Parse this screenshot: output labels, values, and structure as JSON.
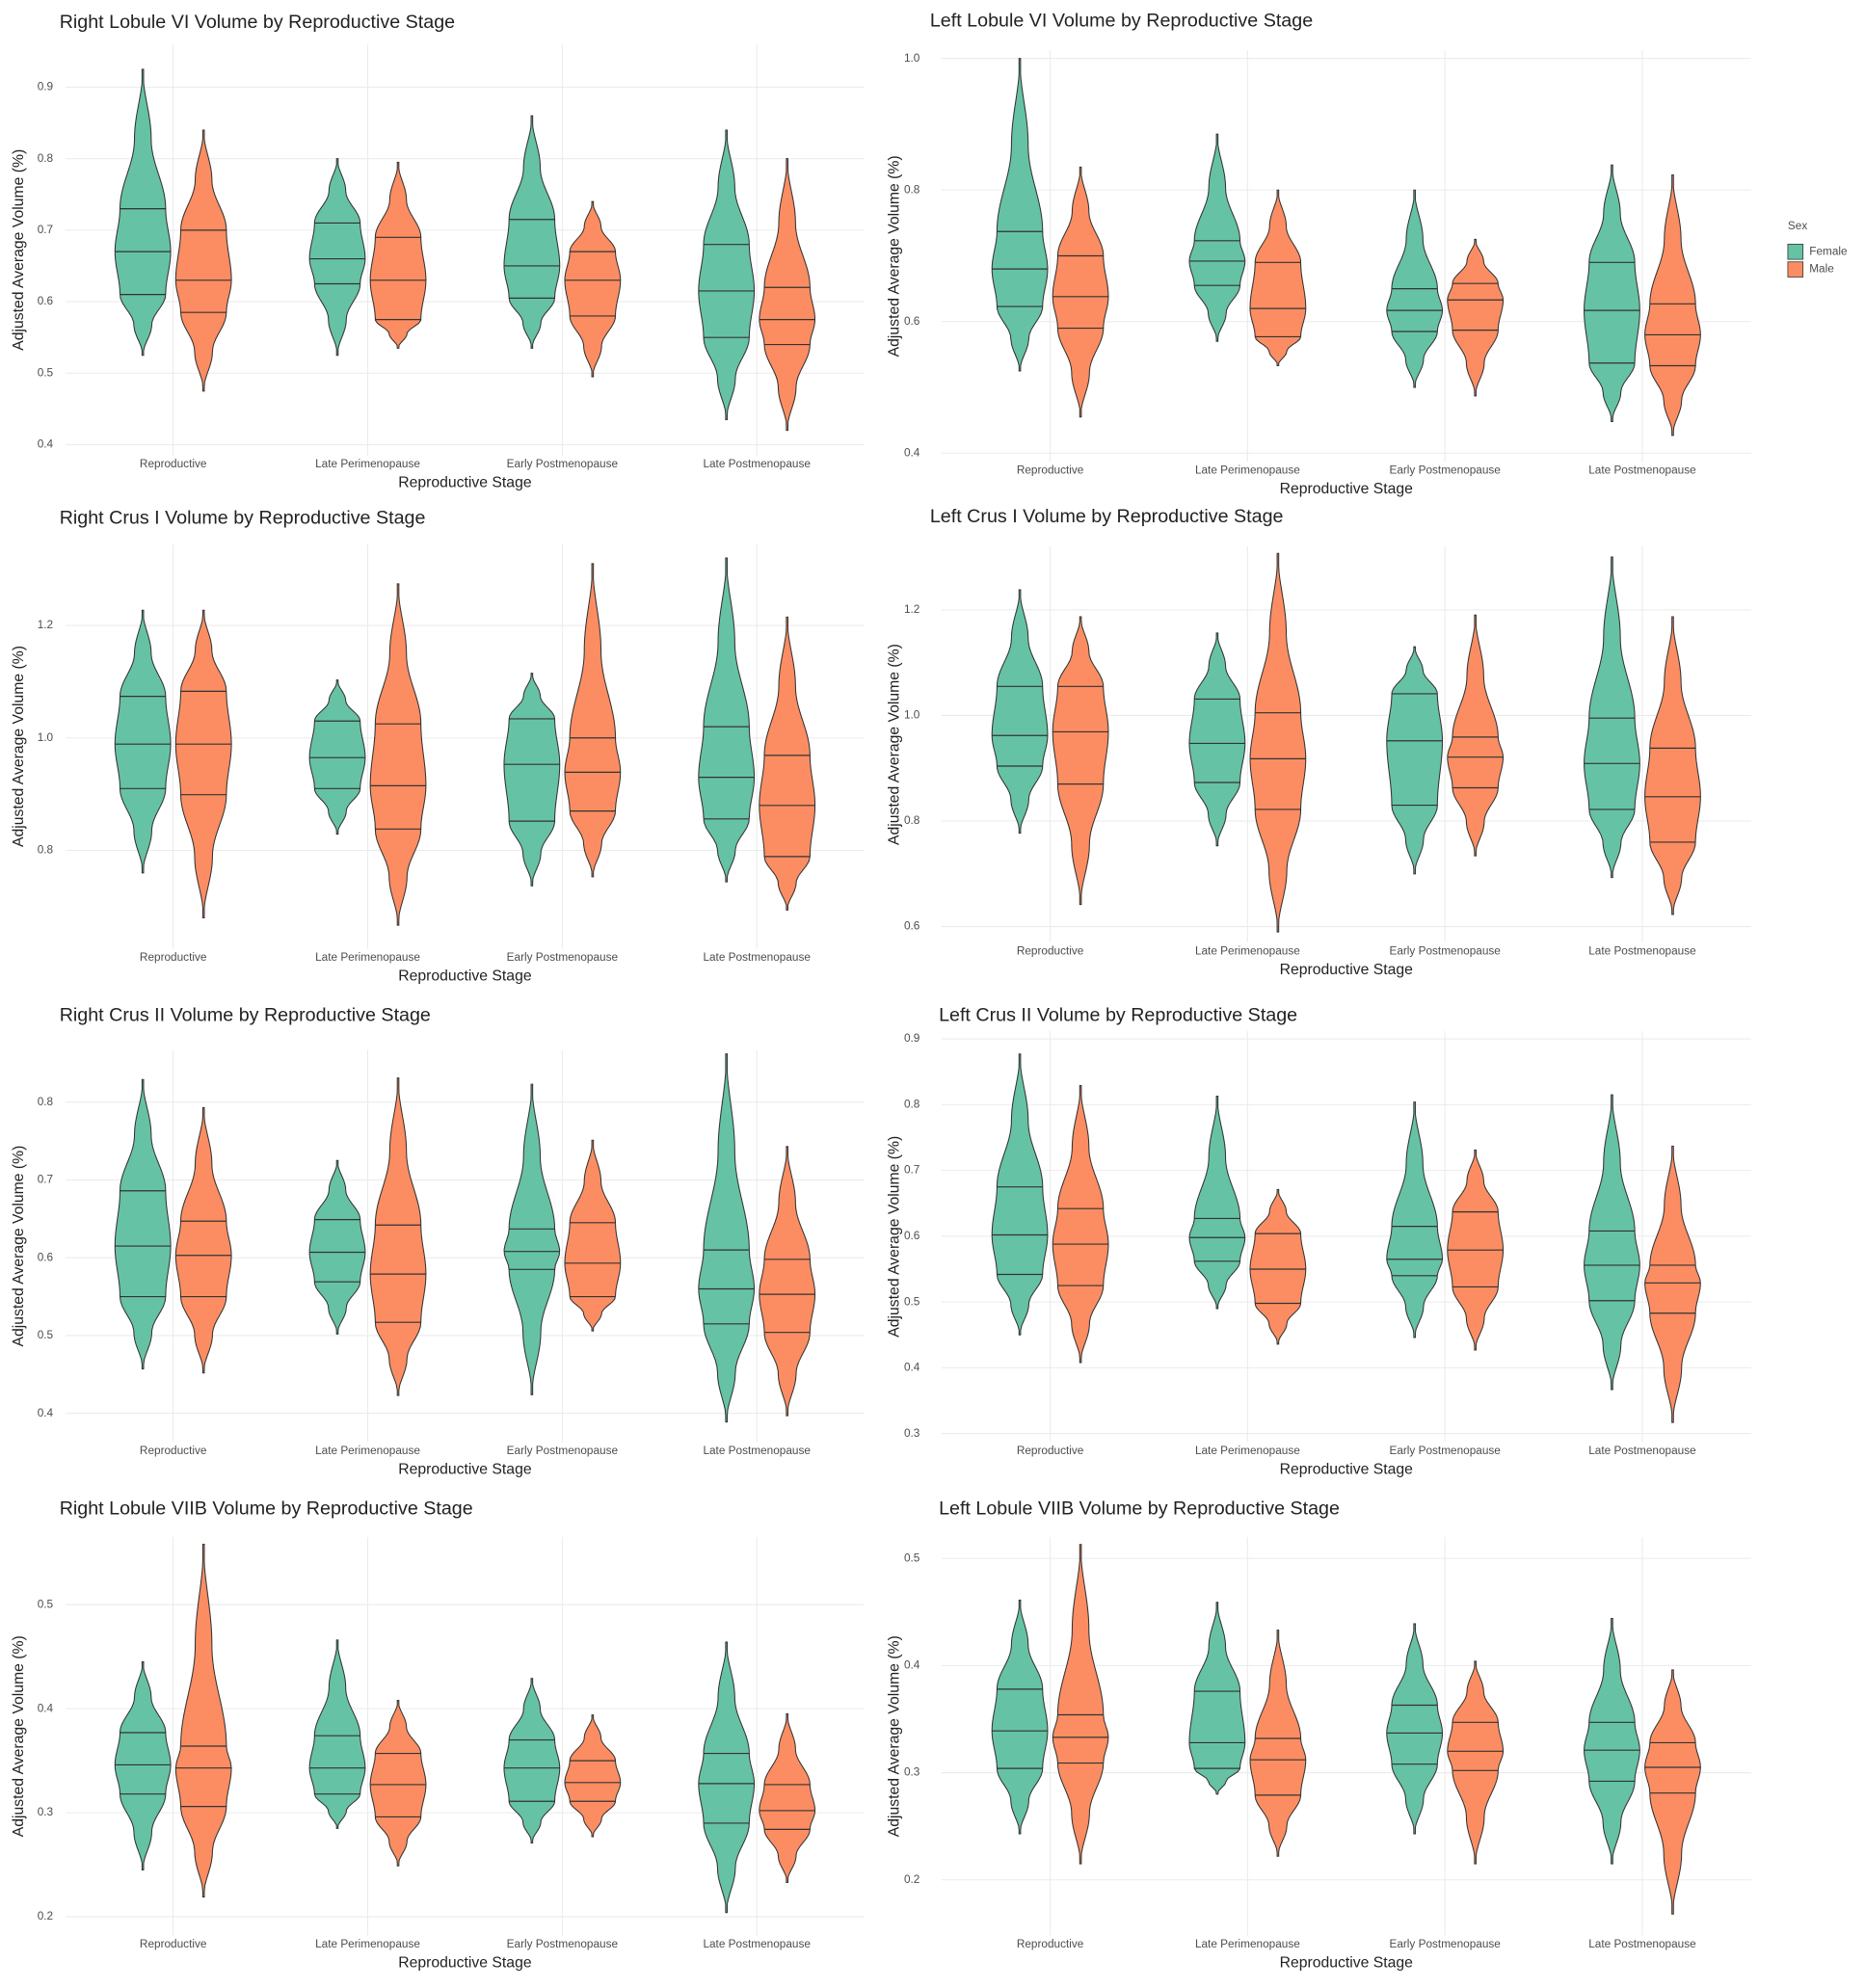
{
  "chart_data": [
    {
      "type": "violin",
      "title": "Right Lobule VI Volume by Reproductive Stage",
      "x_label": "Reproductive Stage",
      "y_label": "Adjusted Average Volume (%)",
      "categories": [
        "Reproductive",
        "Late Perimenopause",
        "Early Postmenopause",
        "Late Postmenopause"
      ],
      "ylim": [
        0.385,
        0.96
      ],
      "yticks": [
        0.4,
        0.5,
        0.6,
        0.7,
        0.8,
        0.9
      ],
      "grid": true,
      "series": [
        {
          "color": "#66c2a5",
          "values": [
            {
              "min": 0.525,
              "q1": 0.61,
              "median": 0.67,
              "q3": 0.73,
              "max": 0.925
            },
            {
              "min": 0.525,
              "q1": 0.625,
              "median": 0.66,
              "q3": 0.71,
              "max": 0.8
            },
            {
              "min": 0.535,
              "q1": 0.605,
              "median": 0.65,
              "q3": 0.715,
              "max": 0.86
            },
            {
              "min": 0.435,
              "q1": 0.55,
              "median": 0.615,
              "q3": 0.68,
              "max": 0.84
            }
          ]
        },
        {
          "color": "#fc8d62",
          "values": [
            {
              "min": 0.475,
              "q1": 0.585,
              "median": 0.63,
              "q3": 0.7,
              "max": 0.84
            },
            {
              "min": 0.535,
              "q1": 0.575,
              "median": 0.63,
              "q3": 0.69,
              "max": 0.795
            },
            {
              "min": 0.495,
              "q1": 0.58,
              "median": 0.63,
              "q3": 0.67,
              "max": 0.74
            },
            {
              "min": 0.42,
              "q1": 0.54,
              "median": 0.575,
              "q3": 0.62,
              "max": 0.8
            }
          ]
        }
      ]
    },
    {
      "type": "violin",
      "title": "Left Lobule VI Volume by Reproductive Stage",
      "x_label": "Reproductive Stage",
      "y_label": "Adjusted Average Volume (%)",
      "categories": [
        "Reproductive",
        "Late Perimenopause",
        "Early Postmenopause",
        "Late Postmenopause"
      ],
      "ylim": [
        0.387,
        1.012
      ],
      "yticks": [
        0.4,
        0.6,
        0.8,
        {
          "value": 1,
          "label": "1.0"
        }
      ],
      "grid": true,
      "legend": true,
      "legend_title": "Sex",
      "series": [
        {
          "name": "Female",
          "color": "#66c2a5",
          "values": [
            {
              "min": 0.525,
              "q1": 0.623,
              "median": 0.68,
              "q3": 0.737,
              "max": 1.0
            },
            {
              "min": 0.57,
              "q1": 0.655,
              "median": 0.692,
              "q3": 0.723,
              "max": 0.885
            },
            {
              "min": 0.5,
              "q1": 0.585,
              "median": 0.617,
              "q3": 0.65,
              "max": 0.8
            },
            {
              "min": 0.448,
              "q1": 0.537,
              "median": 0.617,
              "q3": 0.69,
              "max": 0.838
            }
          ]
        },
        {
          "name": "Male",
          "color": "#fc8d62",
          "values": [
            {
              "min": 0.455,
              "q1": 0.59,
              "median": 0.638,
              "q3": 0.7,
              "max": 0.835
            },
            {
              "min": 0.533,
              "q1": 0.577,
              "median": 0.62,
              "q3": 0.69,
              "max": 0.8
            },
            {
              "min": 0.487,
              "q1": 0.587,
              "median": 0.633,
              "q3": 0.658,
              "max": 0.725
            },
            {
              "min": 0.427,
              "q1": 0.533,
              "median": 0.58,
              "q3": 0.627,
              "max": 0.823
            }
          ]
        }
      ]
    },
    {
      "type": "violin",
      "title": "Right  Crus I Volume by Reproductive Stage",
      "x_label": "Reproductive Stage",
      "y_label": "Adjusted Average Volume (%)",
      "categories": [
        "Reproductive",
        "Late Perimenopause",
        "Early Postmenopause",
        "Late Postmenopause"
      ],
      "ylim": [
        0.625,
        1.345
      ],
      "yticks": [
        0.8,
        {
          "value": 1,
          "label": "1.0"
        },
        1.2
      ],
      "grid": true,
      "series": [
        {
          "color": "#66c2a5",
          "values": [
            {
              "min": 0.76,
              "q1": 0.91,
              "median": 0.989,
              "q3": 1.074,
              "max": 1.227
            },
            {
              "min": 0.829,
              "q1": 0.91,
              "median": 0.965,
              "q3": 1.03,
              "max": 1.103
            },
            {
              "min": 0.737,
              "q1": 0.852,
              "median": 0.953,
              "q3": 1.034,
              "max": 1.115
            },
            {
              "min": 0.744,
              "q1": 0.856,
              "median": 0.93,
              "q3": 1.02,
              "max": 1.32
            }
          ]
        },
        {
          "color": "#fc8d62",
          "values": [
            {
              "min": 0.68,
              "q1": 0.899,
              "median": 0.989,
              "q3": 1.083,
              "max": 1.227
            },
            {
              "min": 0.667,
              "q1": 0.838,
              "median": 0.915,
              "q3": 1.025,
              "max": 1.274
            },
            {
              "min": 0.753,
              "q1": 0.87,
              "median": 0.939,
              "q3": 1.0,
              "max": 1.31
            },
            {
              "min": 0.694,
              "q1": 0.789,
              "median": 0.88,
              "q3": 0.969,
              "max": 1.215
            }
          ]
        }
      ]
    },
    {
      "type": "violin",
      "title": "Left Crus I Volume by Reproductive Stage",
      "x_label": "Reproductive Stage",
      "y_label": "Adjusted Average Volume (%)",
      "categories": [
        "Reproductive",
        "Late Perimenopause",
        "Early Postmenopause",
        "Late Postmenopause"
      ],
      "ylim": [
        0.57,
        1.32
      ],
      "yticks": [
        0.6,
        0.8,
        {
          "value": 1,
          "label": "1.0"
        },
        1.2
      ],
      "grid": true,
      "series": [
        {
          "color": "#66c2a5",
          "values": [
            {
              "min": 0.777,
              "q1": 0.904,
              "median": 0.962,
              "q3": 1.055,
              "max": 1.238
            },
            {
              "min": 0.753,
              "q1": 0.873,
              "median": 0.947,
              "q3": 1.031,
              "max": 1.156
            },
            {
              "min": 0.7,
              "q1": 0.83,
              "median": 0.952,
              "q3": 1.041,
              "max": 1.13
            },
            {
              "min": 0.693,
              "q1": 0.822,
              "median": 0.909,
              "q3": 0.995,
              "max": 1.3
            }
          ]
        },
        {
          "color": "#fc8d62",
          "values": [
            {
              "min": 0.642,
              "q1": 0.87,
              "median": 0.969,
              "q3": 1.055,
              "max": 1.187
            },
            {
              "min": 0.59,
              "q1": 0.822,
              "median": 0.918,
              "q3": 1.005,
              "max": 1.307
            },
            {
              "min": 0.734,
              "q1": 0.863,
              "median": 0.921,
              "q3": 0.959,
              "max": 1.19
            },
            {
              "min": 0.623,
              "q1": 0.76,
              "median": 0.846,
              "q3": 0.938,
              "max": 1.187
            }
          ]
        }
      ]
    },
    {
      "type": "violin",
      "title": "Right  Crus II Volume by Reproductive Stage",
      "x_label": "Reproductive Stage",
      "y_label": "Adjusted Average Volume (%)",
      "categories": [
        "Reproductive",
        "Late Perimenopause",
        "Early Postmenopause",
        "Late Postmenopause"
      ],
      "ylim": [
        0.363,
        0.867
      ],
      "yticks": [
        0.4,
        0.5,
        0.6,
        0.7,
        0.8
      ],
      "grid": true,
      "series": [
        {
          "color": "#66c2a5",
          "values": [
            {
              "min": 0.457,
              "q1": 0.55,
              "median": 0.615,
              "q3": 0.686,
              "max": 0.829
            },
            {
              "min": 0.502,
              "q1": 0.569,
              "median": 0.607,
              "q3": 0.649,
              "max": 0.725
            },
            {
              "min": 0.424,
              "q1": 0.585,
              "median": 0.608,
              "q3": 0.637,
              "max": 0.823
            },
            {
              "min": 0.389,
              "q1": 0.515,
              "median": 0.56,
              "q3": 0.61,
              "max": 0.862
            }
          ]
        },
        {
          "color": "#fc8d62",
          "values": [
            {
              "min": 0.452,
              "q1": 0.55,
              "median": 0.603,
              "q3": 0.647,
              "max": 0.793
            },
            {
              "min": 0.423,
              "q1": 0.517,
              "median": 0.579,
              "q3": 0.642,
              "max": 0.831
            },
            {
              "min": 0.506,
              "q1": 0.55,
              "median": 0.593,
              "q3": 0.645,
              "max": 0.751
            },
            {
              "min": 0.397,
              "q1": 0.504,
              "median": 0.553,
              "q3": 0.598,
              "max": 0.743
            }
          ]
        }
      ]
    },
    {
      "type": "violin",
      "title": "Left Crus II Volume by Reproductive Stage",
      "x_label": "Reproductive Stage",
      "y_label": "Adjusted Average Volume (%)",
      "categories": [
        "Reproductive",
        "Late Perimenopause",
        "Early Postmenopause",
        "Late Postmenopause"
      ],
      "ylim": [
        0.287,
        0.912
      ],
      "yticks": [
        0.3,
        0.4,
        0.5,
        0.6,
        0.7,
        0.8,
        0.9
      ],
      "grid": true,
      "series": [
        {
          "color": "#66c2a5",
          "values": [
            {
              "min": 0.45,
              "q1": 0.542,
              "median": 0.602,
              "q3": 0.675,
              "max": 0.877
            },
            {
              "min": 0.49,
              "q1": 0.562,
              "median": 0.598,
              "q3": 0.627,
              "max": 0.813
            },
            {
              "min": 0.446,
              "q1": 0.54,
              "median": 0.565,
              "q3": 0.615,
              "max": 0.804
            },
            {
              "min": 0.367,
              "q1": 0.502,
              "median": 0.556,
              "q3": 0.608,
              "max": 0.815
            }
          ]
        },
        {
          "color": "#fc8d62",
          "values": [
            {
              "min": 0.408,
              "q1": 0.525,
              "median": 0.588,
              "q3": 0.642,
              "max": 0.829
            },
            {
              "min": 0.436,
              "q1": 0.498,
              "median": 0.55,
              "q3": 0.604,
              "max": 0.671
            },
            {
              "min": 0.427,
              "q1": 0.523,
              "median": 0.579,
              "q3": 0.637,
              "max": 0.731
            },
            {
              "min": 0.317,
              "q1": 0.483,
              "median": 0.529,
              "q3": 0.556,
              "max": 0.737
            }
          ]
        }
      ]
    },
    {
      "type": "violin",
      "title": "Right Lobule VIIB Volume by Reproductive Stage",
      "x_label": "Reproductive Stage",
      "y_label": "Adjusted Average Volume (%)",
      "categories": [
        "Reproductive",
        "Late Perimenopause",
        "Early Postmenopause",
        "Late Postmenopause"
      ],
      "ylim": [
        0.182,
        0.565
      ],
      "yticks": [
        0.2,
        0.3,
        0.4,
        0.5
      ],
      "grid": true,
      "series": [
        {
          "color": "#66c2a5",
          "values": [
            {
              "min": 0.245,
              "q1": 0.318,
              "median": 0.346,
              "q3": 0.377,
              "max": 0.445
            },
            {
              "min": 0.285,
              "q1": 0.318,
              "median": 0.343,
              "q3": 0.374,
              "max": 0.466
            },
            {
              "min": 0.271,
              "q1": 0.311,
              "median": 0.343,
              "q3": 0.37,
              "max": 0.429
            },
            {
              "min": 0.204,
              "q1": 0.29,
              "median": 0.328,
              "q3": 0.357,
              "max": 0.464
            }
          ]
        },
        {
          "color": "#fc8d62",
          "values": [
            {
              "min": 0.219,
              "q1": 0.306,
              "median": 0.343,
              "q3": 0.364,
              "max": 0.558
            },
            {
              "min": 0.249,
              "q1": 0.296,
              "median": 0.327,
              "q3": 0.357,
              "max": 0.408
            },
            {
              "min": 0.277,
              "q1": 0.311,
              "median": 0.329,
              "q3": 0.35,
              "max": 0.394
            },
            {
              "min": 0.233,
              "q1": 0.284,
              "median": 0.302,
              "q3": 0.327,
              "max": 0.395
            }
          ]
        }
      ]
    },
    {
      "type": "violin",
      "title": "Left Lobule VIIB Volume by Reproductive Stage",
      "x_label": "Reproductive Stage",
      "y_label": "Adjusted Average Volume (%)",
      "categories": [
        "Reproductive",
        "Late Perimenopause",
        "Early Postmenopause",
        "Late Postmenopause"
      ],
      "ylim": [
        0.148,
        0.52
      ],
      "yticks": [
        0.2,
        0.3,
        0.4,
        0.5
      ],
      "grid": true,
      "series": [
        {
          "color": "#66c2a5",
          "values": [
            {
              "min": 0.243,
              "q1": 0.304,
              "median": 0.339,
              "q3": 0.378,
              "max": 0.461
            },
            {
              "min": 0.28,
              "q1": 0.304,
              "median": 0.328,
              "q3": 0.376,
              "max": 0.459
            },
            {
              "min": 0.243,
              "q1": 0.308,
              "median": 0.337,
              "q3": 0.363,
              "max": 0.439
            },
            {
              "min": 0.215,
              "q1": 0.292,
              "median": 0.321,
              "q3": 0.347,
              "max": 0.444
            }
          ]
        },
        {
          "color": "#fc8d62",
          "values": [
            {
              "min": 0.215,
              "q1": 0.309,
              "median": 0.333,
              "q3": 0.354,
              "max": 0.513
            },
            {
              "min": 0.222,
              "q1": 0.279,
              "median": 0.312,
              "q3": 0.332,
              "max": 0.433
            },
            {
              "min": 0.215,
              "q1": 0.302,
              "median": 0.32,
              "q3": 0.347,
              "max": 0.404
            },
            {
              "min": 0.168,
              "q1": 0.281,
              "median": 0.305,
              "q3": 0.328,
              "max": 0.396
            }
          ]
        }
      ]
    }
  ]
}
